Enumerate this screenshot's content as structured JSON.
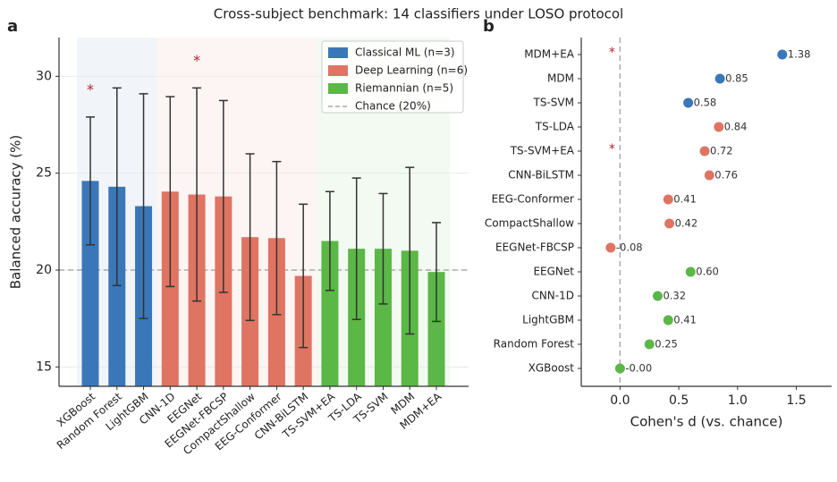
{
  "suptitle": "Cross-subject benchmark: 14 classifiers under LOSO protocol",
  "chart_data": [
    {
      "type": "bar",
      "label": "a",
      "categories": [
        "XGBoost",
        "Random Forest",
        "LightGBM",
        "CNN-1D",
        "EEGNet",
        "EEGNet-FBCSP",
        "CompactShallow",
        "EEG-Conformer",
        "CNN-BiLSTM",
        "TS-SVM+EA",
        "TS-LDA",
        "TS-SVM",
        "MDM",
        "MDM+EA"
      ],
      "series": [
        {
          "name": "Classical ML (n=3)",
          "color": "#3a77b9",
          "values": [
            24.6,
            24.3,
            23.3,
            null,
            null,
            null,
            null,
            null,
            null,
            null,
            null,
            null,
            null,
            null
          ],
          "errors": [
            3.3,
            5.1,
            5.8,
            null,
            null,
            null,
            null,
            null,
            null,
            null,
            null,
            null,
            null,
            null
          ]
        },
        {
          "name": "Deep Learning (n=6)",
          "color": "#df7462",
          "values": [
            null,
            null,
            null,
            24.05,
            23.9,
            23.8,
            21.7,
            21.65,
            19.7,
            null,
            null,
            null,
            null,
            null
          ],
          "errors": [
            null,
            null,
            null,
            4.9,
            5.5,
            4.95,
            4.3,
            3.95,
            3.7,
            null,
            null,
            null,
            null,
            null
          ]
        },
        {
          "name": "Riemannian (n=5)",
          "color": "#5bb746",
          "values": [
            null,
            null,
            null,
            null,
            null,
            null,
            null,
            null,
            null,
            21.5,
            21.1,
            21.1,
            21.0,
            19.9
          ],
          "errors": [
            null,
            null,
            null,
            null,
            null,
            null,
            null,
            null,
            null,
            2.55,
            3.65,
            2.85,
            4.3,
            2.55
          ]
        }
      ],
      "annotations": [
        "*",
        null,
        null,
        null,
        "*",
        null,
        null,
        null,
        null,
        null,
        null,
        null,
        null,
        null
      ],
      "chance": {
        "name": "Chance (20%)",
        "value": 20
      },
      "ylabel": "Balanced accuracy (%)",
      "ylim": [
        14,
        32
      ],
      "yticks": [
        15,
        20,
        25,
        30
      ],
      "grid": true,
      "legend": "upper right"
    },
    {
      "type": "dot",
      "label": "b",
      "categories": [
        "MDM+EA",
        "MDM",
        "TS-SVM",
        "TS-LDA",
        "TS-SVM+EA",
        "CNN-BiLSTM",
        "EEG-Conformer",
        "CompactShallow",
        "EEGNet-FBCSP",
        "EEGNet",
        "CNN-1D",
        "LightGBM",
        "Random Forest",
        "XGBoost"
      ],
      "values": [
        1.38,
        0.85,
        0.58,
        0.84,
        0.72,
        0.76,
        0.41,
        0.42,
        -0.08,
        0.6,
        0.32,
        0.41,
        0.25,
        0
      ],
      "value_labels": [
        "1.38",
        "0.85",
        "0.58",
        "0.84",
        "0.72",
        "0.76",
        "0.41",
        "0.42",
        "-0.08",
        "0.60",
        "0.32",
        "0.41",
        "0.25",
        "-0.00"
      ],
      "colors": [
        "#3a77b9",
        "#3a77b9",
        "#3a77b9",
        "#df7462",
        "#df7462",
        "#df7462",
        "#df7462",
        "#df7462",
        "#df7462",
        "#5bb746",
        "#5bb746",
        "#5bb746",
        "#5bb746",
        "#5bb746"
      ],
      "annotations": [
        "*",
        null,
        null,
        null,
        "*",
        null,
        null,
        null,
        null,
        null,
        null,
        null,
        null,
        null
      ],
      "xlabel": "Cohen's d (vs. chance)",
      "xlim": [
        -0.33,
        1.8
      ],
      "xticks": [
        {
          "value": 0,
          "label": "0.0"
        },
        0.5,
        {
          "value": 1,
          "label": "1.0"
        },
        1.5
      ]
    }
  ]
}
